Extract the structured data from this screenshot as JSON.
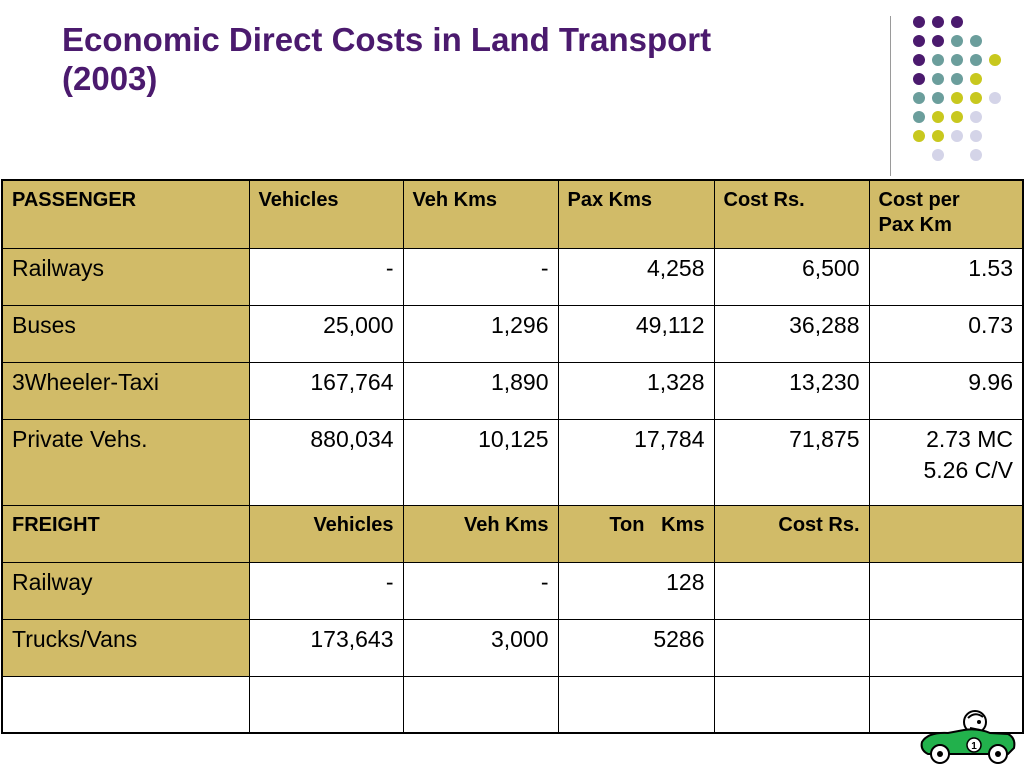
{
  "title_line1": "Economic Direct Costs in Land Transport",
  "title_line2": "(2003)",
  "passenger_header": {
    "label": "PASSENGER",
    "vehicles": "Vehicles",
    "veh_kms": "Veh Kms",
    "pax_kms": "Pax Kms",
    "cost": "Cost Rs.",
    "cost_per_line1": "Cost per",
    "cost_per_line2": "Pax Km"
  },
  "passenger_rows": [
    {
      "label": "Railways",
      "vehicles": "-",
      "veh_kms": "-",
      "pax_kms": "4,258",
      "cost": "6,500",
      "cost_per": "1.53"
    },
    {
      "label": "Buses",
      "vehicles": "25,000",
      "veh_kms": "1,296",
      "pax_kms": "49,112",
      "cost": "36,288",
      "cost_per": "0.73"
    },
    {
      "label": "3Wheeler-Taxi",
      "vehicles": "167,764",
      "veh_kms": "1,890",
      "pax_kms": "1,328",
      "cost": "13,230",
      "cost_per": "9.96"
    },
    {
      "label": "Private Vehs.",
      "vehicles": "880,034",
      "veh_kms": "10,125",
      "pax_kms": "17,784",
      "cost": "71,875",
      "cost_per_line1": "2.73 MC",
      "cost_per_line2": "5.26 C/V"
    }
  ],
  "freight_header": {
    "label": "FREIGHT",
    "vehicles": "Vehicles",
    "veh_kms": "Veh Kms",
    "ton_kms": "Ton   Kms",
    "cost": "Cost Rs."
  },
  "freight_rows": [
    {
      "label": "Railway",
      "vehicles": "-",
      "veh_kms": "-",
      "ton_kms": "128"
    },
    {
      "label": "Trucks/Vans",
      "vehicles": "173,643",
      "veh_kms": "3,000",
      "ton_kms": "5286"
    }
  ],
  "colors": {
    "title": "#4b1a6e",
    "label_cell": "#d1bb68",
    "dot_purple": "#4b1a6e",
    "dot_teal": "#6b9e9c",
    "dot_yellow": "#c8c81e",
    "dot_lavender": "#d4d4e8",
    "car": "#22b14c"
  },
  "car_number": "1"
}
